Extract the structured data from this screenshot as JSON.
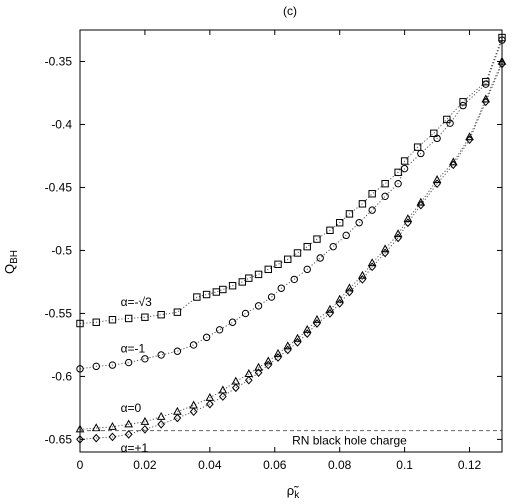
{
  "chart_data": {
    "type": "scatter",
    "title": "(c)",
    "xlabel": "ρ̃",
    "xlabel_sub": "k",
    "ylabel": "Q",
    "ylabel_sub": "BH",
    "xlim": [
      0,
      0.13
    ],
    "ylim": [
      -0.66,
      -0.325
    ],
    "x_ticks": [
      0,
      0.02,
      0.04,
      0.06,
      0.08,
      0.1,
      0.12
    ],
    "x_tick_labels": [
      "0",
      "0.02",
      "0.04",
      "0.06",
      "0.08",
      "0.1",
      "0.12"
    ],
    "y_ticks": [
      -0.35,
      -0.4,
      -0.45,
      -0.5,
      -0.55,
      -0.6,
      -0.65
    ],
    "y_tick_labels": [
      "-0.35",
      "-0.4",
      "-0.45",
      "-0.5",
      "-0.55",
      "-0.6",
      "-0.65"
    ],
    "grid": false,
    "reference_line": {
      "y": -0.643,
      "label": "RN black hole charge",
      "style": "dashed"
    },
    "series": [
      {
        "name": "α=-√3",
        "marker": "square",
        "points": [
          [
            0.0,
            -0.558
          ],
          [
            0.005,
            -0.557
          ],
          [
            0.01,
            -0.555
          ],
          [
            0.015,
            -0.554
          ],
          [
            0.02,
            -0.553
          ],
          [
            0.025,
            -0.551
          ],
          [
            0.03,
            -0.549
          ],
          [
            0.036,
            -0.537
          ],
          [
            0.039,
            -0.535
          ],
          [
            0.042,
            -0.533
          ],
          [
            0.044,
            -0.531
          ],
          [
            0.047,
            -0.528
          ],
          [
            0.05,
            -0.525
          ],
          [
            0.052,
            -0.522
          ],
          [
            0.055,
            -0.519
          ],
          [
            0.058,
            -0.515
          ],
          [
            0.061,
            -0.511
          ],
          [
            0.064,
            -0.507
          ],
          [
            0.067,
            -0.502
          ],
          [
            0.07,
            -0.497
          ],
          [
            0.073,
            -0.491
          ],
          [
            0.077,
            -0.484
          ],
          [
            0.08,
            -0.478
          ],
          [
            0.083,
            -0.471
          ],
          [
            0.087,
            -0.463
          ],
          [
            0.09,
            -0.455
          ],
          [
            0.094,
            -0.447
          ],
          [
            0.098,
            -0.438
          ],
          [
            0.1,
            -0.429
          ],
          [
            0.104,
            -0.418
          ],
          [
            0.109,
            -0.407
          ],
          [
            0.113,
            -0.396
          ],
          [
            0.118,
            -0.382
          ],
          [
            0.125,
            -0.366
          ],
          [
            0.13,
            -0.331
          ]
        ]
      },
      {
        "name": "α=-1",
        "marker": "circle",
        "points": [
          [
            0.0,
            -0.594
          ],
          [
            0.005,
            -0.592
          ],
          [
            0.01,
            -0.591
          ],
          [
            0.015,
            -0.589
          ],
          [
            0.02,
            -0.586
          ],
          [
            0.025,
            -0.583
          ],
          [
            0.03,
            -0.58
          ],
          [
            0.035,
            -0.575
          ],
          [
            0.039,
            -0.569
          ],
          [
            0.043,
            -0.563
          ],
          [
            0.047,
            -0.557
          ],
          [
            0.051,
            -0.55
          ],
          [
            0.055,
            -0.544
          ],
          [
            0.059,
            -0.537
          ],
          [
            0.062,
            -0.53
          ],
          [
            0.066,
            -0.523
          ],
          [
            0.07,
            -0.515
          ],
          [
            0.074,
            -0.506
          ],
          [
            0.078,
            -0.497
          ],
          [
            0.082,
            -0.488
          ],
          [
            0.086,
            -0.478
          ],
          [
            0.09,
            -0.468
          ],
          [
            0.094,
            -0.457
          ],
          [
            0.098,
            -0.447
          ],
          [
            0.1,
            -0.435
          ],
          [
            0.105,
            -0.423
          ],
          [
            0.11,
            -0.411
          ],
          [
            0.114,
            -0.399
          ],
          [
            0.118,
            -0.385
          ],
          [
            0.125,
            -0.368
          ],
          [
            0.13,
            -0.333
          ]
        ]
      },
      {
        "name": "α=0",
        "marker": "triangle",
        "points": [
          [
            0.0,
            -0.642
          ],
          [
            0.005,
            -0.641
          ],
          [
            0.01,
            -0.64
          ],
          [
            0.015,
            -0.638
          ],
          [
            0.02,
            -0.636
          ],
          [
            0.025,
            -0.632
          ],
          [
            0.03,
            -0.628
          ],
          [
            0.035,
            -0.623
          ],
          [
            0.04,
            -0.617
          ],
          [
            0.044,
            -0.611
          ],
          [
            0.048,
            -0.604
          ],
          [
            0.052,
            -0.598
          ],
          [
            0.055,
            -0.593
          ],
          [
            0.058,
            -0.588
          ],
          [
            0.061,
            -0.582
          ],
          [
            0.064,
            -0.576
          ],
          [
            0.067,
            -0.57
          ],
          [
            0.07,
            -0.563
          ],
          [
            0.073,
            -0.555
          ],
          [
            0.077,
            -0.547
          ],
          [
            0.08,
            -0.539
          ],
          [
            0.083,
            -0.53
          ],
          [
            0.087,
            -0.52
          ],
          [
            0.09,
            -0.51
          ],
          [
            0.094,
            -0.499
          ],
          [
            0.098,
            -0.487
          ],
          [
            0.101,
            -0.475
          ],
          [
            0.105,
            -0.462
          ],
          [
            0.11,
            -0.444
          ],
          [
            0.115,
            -0.43
          ],
          [
            0.12,
            -0.41
          ],
          [
            0.125,
            -0.38
          ],
          [
            0.13,
            -0.35
          ]
        ]
      },
      {
        "name": "α=+1",
        "marker": "diamond",
        "points": [
          [
            0.0,
            -0.65
          ],
          [
            0.005,
            -0.649
          ],
          [
            0.01,
            -0.648
          ],
          [
            0.015,
            -0.646
          ],
          [
            0.02,
            -0.642
          ],
          [
            0.025,
            -0.638
          ],
          [
            0.03,
            -0.633
          ],
          [
            0.035,
            -0.628
          ],
          [
            0.04,
            -0.622
          ],
          [
            0.044,
            -0.616
          ],
          [
            0.048,
            -0.609
          ],
          [
            0.052,
            -0.603
          ],
          [
            0.055,
            -0.597
          ],
          [
            0.058,
            -0.591
          ],
          [
            0.061,
            -0.585
          ],
          [
            0.064,
            -0.579
          ],
          [
            0.067,
            -0.573
          ],
          [
            0.07,
            -0.566
          ],
          [
            0.073,
            -0.558
          ],
          [
            0.077,
            -0.55
          ],
          [
            0.08,
            -0.542
          ],
          [
            0.083,
            -0.533
          ],
          [
            0.087,
            -0.523
          ],
          [
            0.09,
            -0.513
          ],
          [
            0.094,
            -0.502
          ],
          [
            0.098,
            -0.49
          ],
          [
            0.101,
            -0.478
          ],
          [
            0.105,
            -0.464
          ],
          [
            0.11,
            -0.447
          ],
          [
            0.115,
            -0.432
          ],
          [
            0.12,
            -0.412
          ],
          [
            0.125,
            -0.382
          ],
          [
            0.13,
            -0.352
          ]
        ]
      }
    ]
  }
}
